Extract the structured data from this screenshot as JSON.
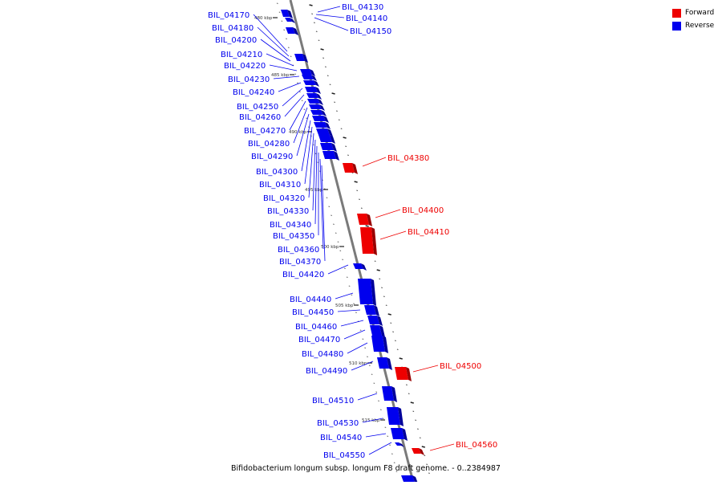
{
  "caption": "Bifidobacterium longum subsp. longum F8 draft genome. - 0..2384987",
  "legend": [
    {
      "label": "Forward",
      "color": "#ee0000"
    },
    {
      "label": "Reverse",
      "color": "#0000ee"
    }
  ],
  "colors": {
    "forward": "#ee0000",
    "reverse": "#0000ee",
    "axis": "#888888"
  },
  "scale_labels": [
    "480 kbp",
    "485 kbp",
    "490 kbp",
    "495 kbp",
    "500 kbp",
    "505 kbp",
    "510 kbp",
    "515 kbp"
  ],
  "genes_forward": [
    "BIL_04380",
    "BIL_04400",
    "BIL_04410",
    "BIL_04500",
    "BIL_04560"
  ],
  "genes_reverse": [
    "BIL_04130",
    "BIL_04140",
    "BIL_04150",
    "BIL_04170",
    "BIL_04180",
    "BIL_04200",
    "BIL_04210",
    "BIL_04220",
    "BIL_04230",
    "BIL_04240",
    "BIL_04250",
    "BIL_04260",
    "BIL_04270",
    "BIL_04280",
    "BIL_04290",
    "BIL_04300",
    "BIL_04310",
    "BIL_04320",
    "BIL_04330",
    "BIL_04340",
    "BIL_04350",
    "BIL_04360",
    "BIL_04370",
    "BIL_04420",
    "BIL_04440",
    "BIL_04450",
    "BIL_04460",
    "BIL_04470",
    "BIL_04480",
    "BIL_04490",
    "BIL_04510",
    "BIL_04530",
    "BIL_04540",
    "BIL_04550"
  ]
}
